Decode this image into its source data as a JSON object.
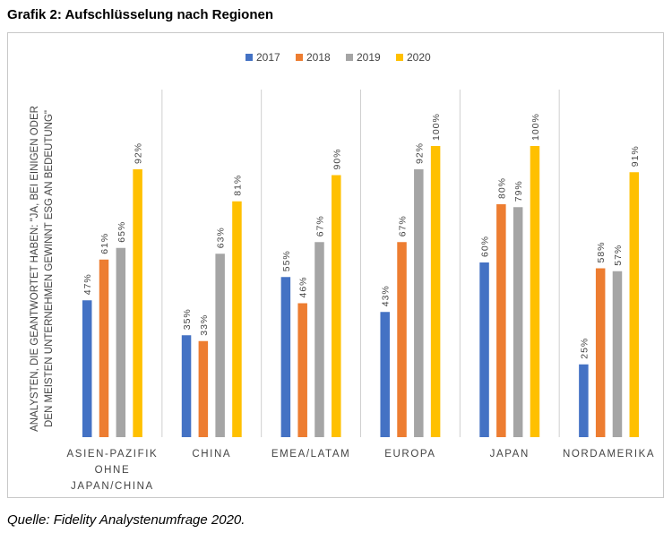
{
  "page": {
    "title": "Grafik 2: Aufschlüsselung nach Regionen",
    "source": "Quelle: Fidelity Analystenumfrage 2020."
  },
  "colors": {
    "2017": "#4472c4",
    "2018": "#ed7d31",
    "2019": "#a5a5a5",
    "2020": "#ffc000",
    "separator": "#cfcfcf"
  },
  "chart_data": {
    "type": "bar",
    "title": "",
    "xlabel": "",
    "ylabel": [
      "ANALYSTEN, DIE GEANTWORTET HABEN: \"JA, BEI EINIGEN ODER",
      "DEN MEISTEN UNTERNEHMEN GEWINNT ESG AN BEDEUTUNG\""
    ],
    "ylim": [
      0,
      100
    ],
    "grid": false,
    "legend_position": "top",
    "categories": [
      [
        "ASIEN-PAZIFIK",
        "OHNE",
        "JAPAN/CHINA"
      ],
      [
        "CHINA"
      ],
      [
        "EMEA/LATAM"
      ],
      [
        "EUROPA"
      ],
      [
        "JAPAN"
      ],
      [
        "NORDAMERIKA"
      ]
    ],
    "series": [
      {
        "name": "2017",
        "values": [
          47,
          35,
          55,
          43,
          60,
          25
        ]
      },
      {
        "name": "2018",
        "values": [
          61,
          33,
          46,
          67,
          80,
          58
        ]
      },
      {
        "name": "2019",
        "values": [
          65,
          63,
          67,
          92,
          79,
          57
        ]
      },
      {
        "name": "2020",
        "values": [
          92,
          81,
          90,
          100,
          100,
          91
        ]
      }
    ]
  }
}
